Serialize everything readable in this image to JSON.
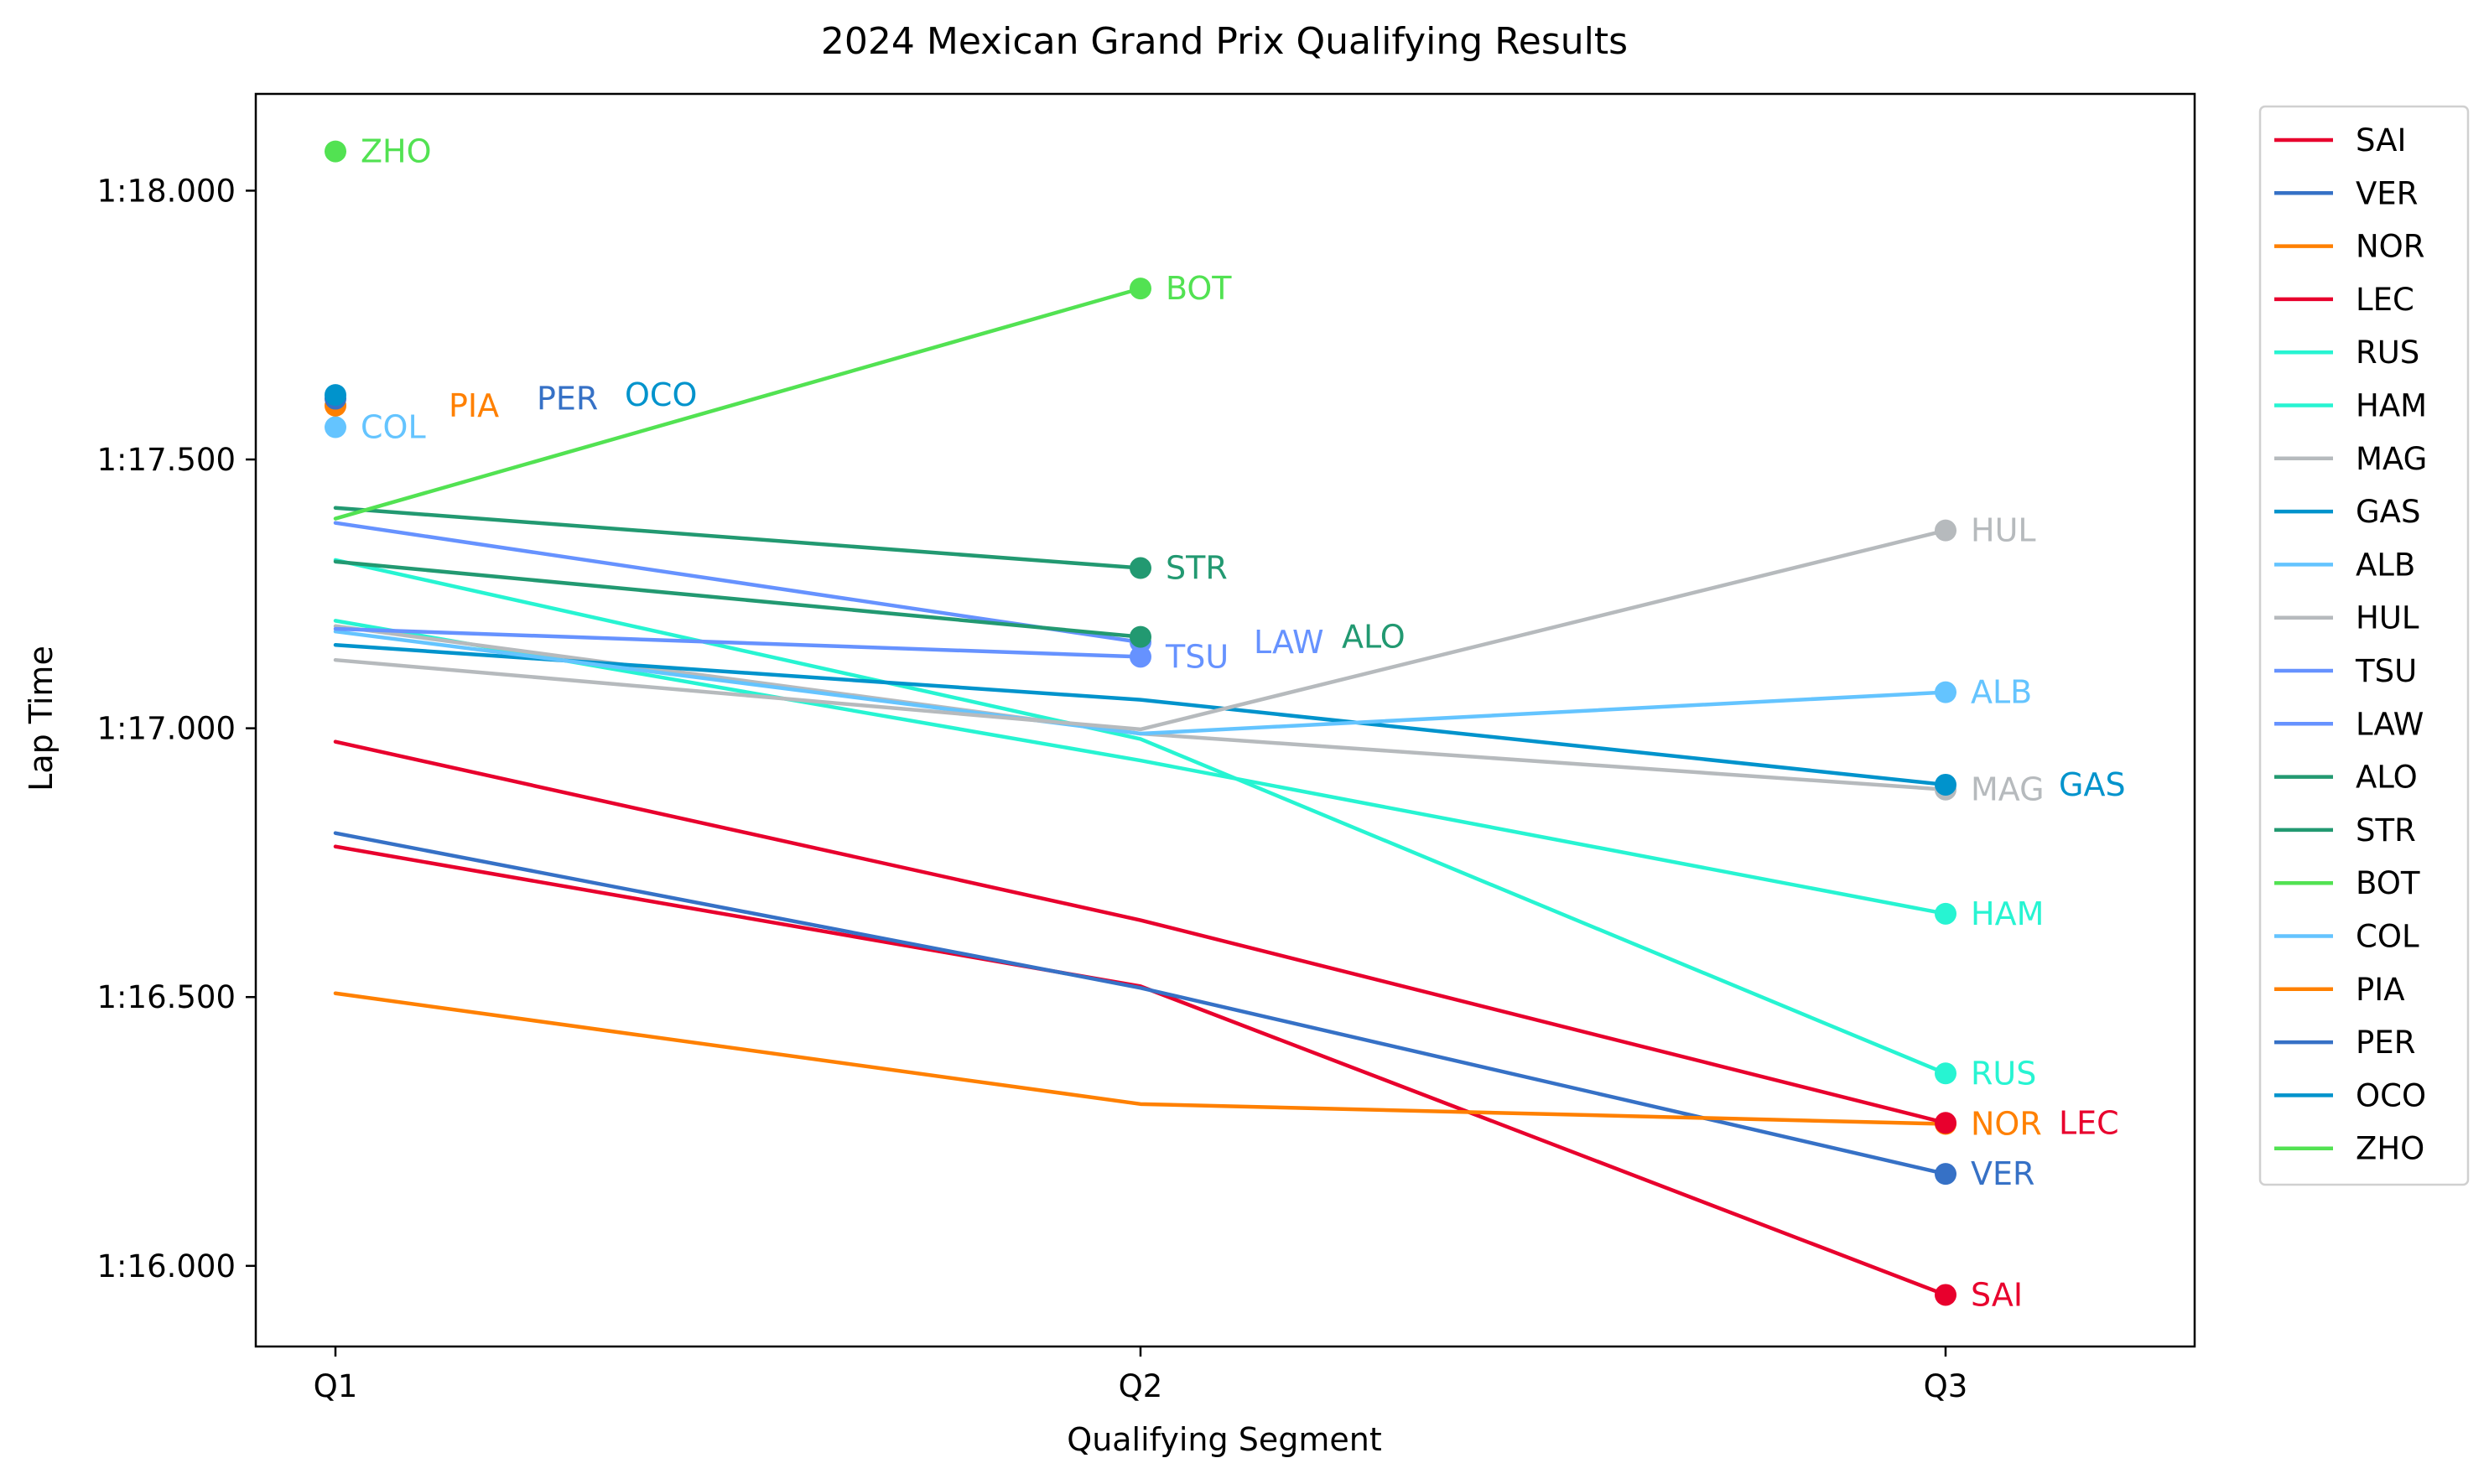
{
  "chart_data": {
    "type": "line",
    "title": "2024 Mexican Grand Prix Qualifying Results",
    "xlabel": "Qualifying Segment",
    "ylabel": "Lap Time",
    "categories": [
      "Q1",
      "Q2",
      "Q3"
    ],
    "y_ticks": [
      {
        "value": 76.0,
        "label": "1:16.000"
      },
      {
        "value": 76.5,
        "label": "1:16.500"
      },
      {
        "value": 77.0,
        "label": "1:17.000"
      },
      {
        "value": 77.5,
        "label": "1:17.500"
      },
      {
        "value": 78.0,
        "label": "1:18.000"
      }
    ],
    "ylim": [
      75.85,
      78.18
    ],
    "grid": false,
    "legend_position": "outside-right",
    "series": [
      {
        "name": "SAI",
        "color": "#e8002d",
        "values": [
          76.78,
          76.52,
          75.946
        ],
        "label_offset": 0
      },
      {
        "name": "VER",
        "color": "#3671c6",
        "values": [
          76.805,
          76.517,
          76.171
        ],
        "label_offset": 0
      },
      {
        "name": "NOR",
        "color": "#ff8000",
        "values": [
          76.507,
          76.301,
          76.264
        ],
        "label_offset": 0
      },
      {
        "name": "LEC",
        "color": "#e8002d",
        "values": [
          76.975,
          76.643,
          76.266
        ],
        "label_offset": 1
      },
      {
        "name": "RUS",
        "color": "#27f4d2",
        "values": [
          77.313,
          76.98,
          76.358
        ],
        "label_offset": 0
      },
      {
        "name": "HAM",
        "color": "#27f4d2",
        "values": [
          77.2,
          76.94,
          76.655
        ],
        "label_offset": 0
      },
      {
        "name": "MAG",
        "color": "#b6babd",
        "values": [
          77.19,
          76.99,
          76.886
        ],
        "label_offset": 0
      },
      {
        "name": "GAS",
        "color": "#0093cc",
        "values": [
          77.155,
          77.053,
          76.895
        ],
        "label_offset": 1
      },
      {
        "name": "ALB",
        "color": "#64c4ff",
        "values": [
          77.18,
          76.99,
          77.067
        ],
        "label_offset": 0
      },
      {
        "name": "HUL",
        "color": "#b6babd",
        "values": [
          77.127,
          76.998,
          77.368
        ],
        "label_offset": 0
      },
      {
        "name": "TSU",
        "color": "#6692ff",
        "values": [
          77.185,
          77.133,
          null
        ],
        "label_offset": 0
      },
      {
        "name": "LAW",
        "color": "#6692ff",
        "values": [
          77.382,
          77.16,
          null
        ],
        "label_offset": 1
      },
      {
        "name": "ALO",
        "color": "#229971",
        "values": [
          77.31,
          77.17,
          null
        ],
        "label_offset": 2
      },
      {
        "name": "STR",
        "color": "#229971",
        "values": [
          77.41,
          77.298,
          null
        ],
        "label_offset": 0
      },
      {
        "name": "BOT",
        "color": "#52e252",
        "values": [
          77.39,
          77.818,
          null
        ],
        "label_offset": 0
      },
      {
        "name": "COL",
        "color": "#64c4ff",
        "values": [
          77.56,
          null,
          null
        ],
        "label_offset": 0
      },
      {
        "name": "PIA",
        "color": "#ff8000",
        "values": [
          77.6,
          null,
          null
        ],
        "label_offset": 1
      },
      {
        "name": "PER",
        "color": "#3671c6",
        "values": [
          77.613,
          null,
          null
        ],
        "label_offset": 2
      },
      {
        "name": "OCO",
        "color": "#0093cc",
        "values": [
          77.62,
          null,
          null
        ],
        "label_offset": 3
      },
      {
        "name": "ZHO",
        "color": "#52e252",
        "values": [
          78.073,
          null,
          null
        ],
        "label_offset": 0
      }
    ]
  }
}
